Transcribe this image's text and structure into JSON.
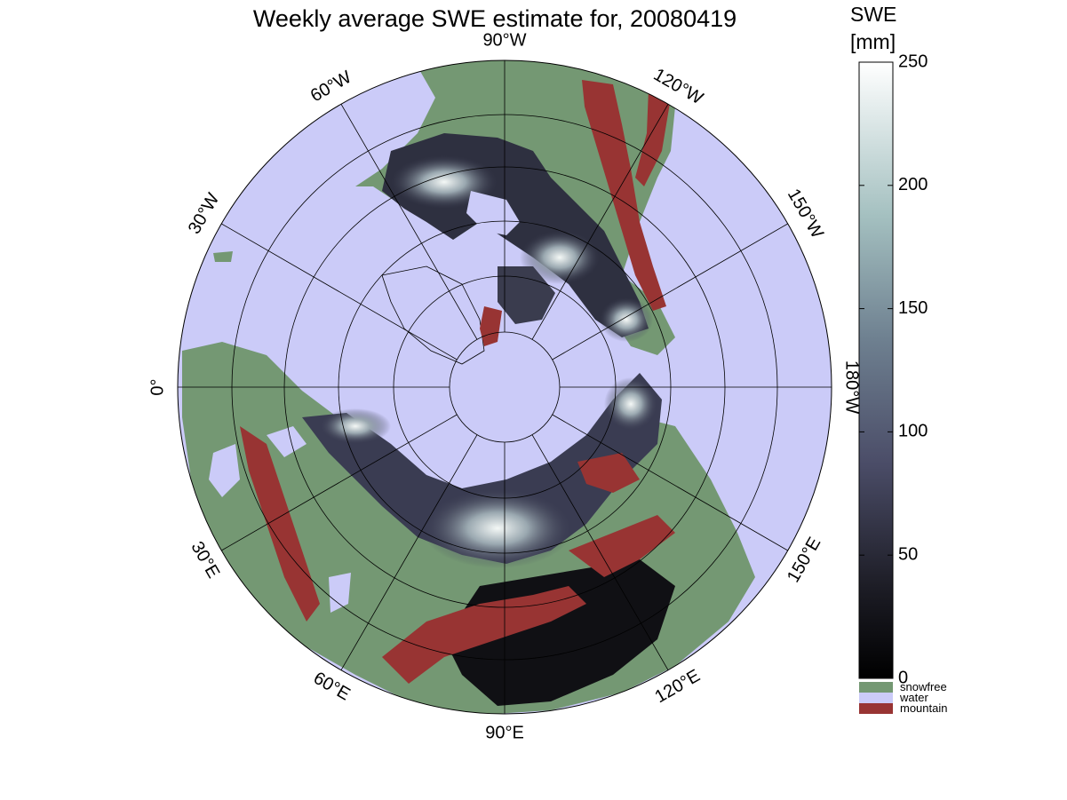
{
  "title": "Weekly average SWE estimate for, 20080419",
  "colorbar": {
    "label_line1": "SWE",
    "label_line2": "[mm]",
    "ticks": [
      "250",
      "200",
      "150",
      "100",
      "50",
      "0"
    ],
    "tick_values": [
      250,
      200,
      150,
      100,
      50,
      0
    ],
    "range": [
      0,
      250
    ]
  },
  "legend": [
    {
      "label": "snowfree",
      "color": "#749873"
    },
    {
      "label": "water",
      "color": "#cbcbf8"
    },
    {
      "label": "mountain",
      "color": "#983433"
    }
  ],
  "meridians": [
    {
      "label": "90°W"
    },
    {
      "label": "120°W"
    },
    {
      "label": "150°W"
    },
    {
      "label": "180°W"
    },
    {
      "label": "150°E"
    },
    {
      "label": "120°E"
    },
    {
      "label": "90°E"
    },
    {
      "label": "60°E"
    },
    {
      "label": "30°E"
    },
    {
      "label": "0°"
    },
    {
      "label": "30°W"
    },
    {
      "label": "60°W"
    }
  ],
  "colors": {
    "water": "#cbcbf8",
    "snowfree": "#749873",
    "mountain": "#983433",
    "swe_low": "#0f0f14",
    "swe_high": "#ffffff"
  }
}
